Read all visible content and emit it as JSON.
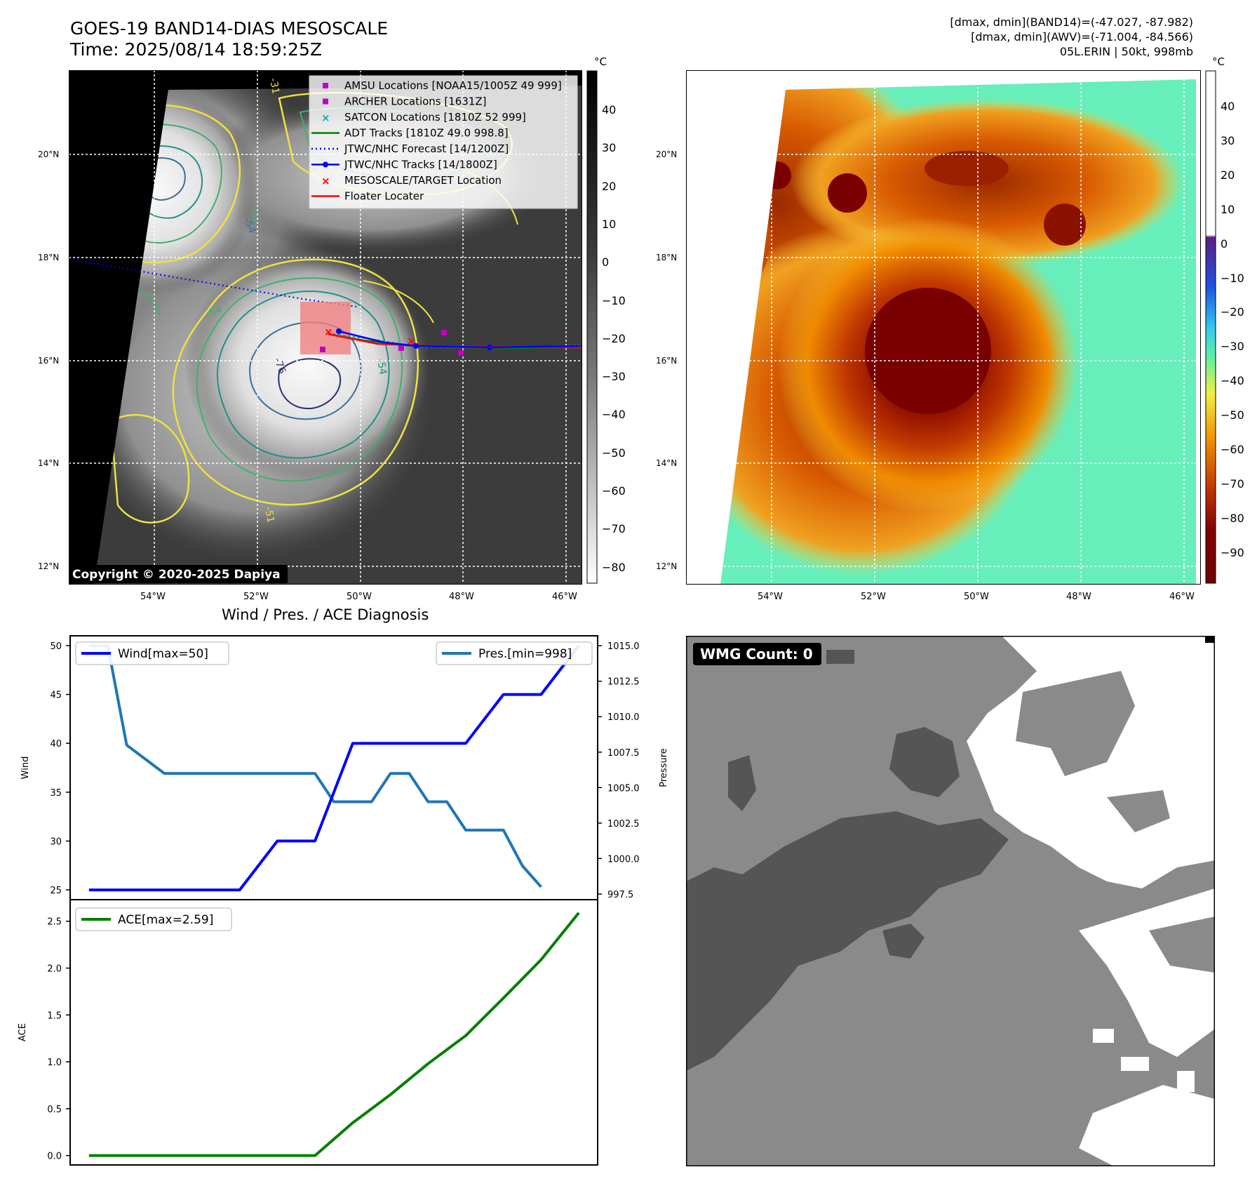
{
  "header": {
    "title_line1": "GOES-19 BAND14-DIAS MESOSCALE",
    "title_line2": "Time: 2025/08/14 18:59:25Z",
    "stats_line1": "[dmax, dmin](BAND14)=(-47.027, -87.982)",
    "stats_line2": "[dmax, dmin](AWV)=(-71.004, -84.566)",
    "stats_line3": "05L.ERIN | 50kt, 998mb"
  },
  "maps": {
    "lat_labels": [
      "20°N",
      "18°N",
      "16°N",
      "14°N",
      "12°N"
    ],
    "lon_labels": [
      "54°W",
      "52°W",
      "50°W",
      "48°W",
      "46°W"
    ],
    "copyright": "Copyright © 2020-2025 Dapiya",
    "contour_labels": [
      "-54",
      "-76",
      "-54",
      "-54",
      "-51",
      "-31",
      "-41"
    ]
  },
  "legend": {
    "items": [
      {
        "label": "AMSU Locations [NOAA15/1005Z 49 999]",
        "color": "#c000c0",
        "marker": "square"
      },
      {
        "label": "ARCHER Locations [1631Z]",
        "color": "#c000c0",
        "marker": "square"
      },
      {
        "label": "SATCON Locations [1810Z 52 999]",
        "color": "#00b0b0",
        "marker": "x"
      },
      {
        "label": "ADT Tracks [1810Z 49.0 998.8]",
        "color": "#008000",
        "marker": "line"
      },
      {
        "label": "JTWC/NHC Forecast [14/1200Z]",
        "color": "#0000ff",
        "marker": "dotted"
      },
      {
        "label": "JTWC/NHC Tracks [14/1800Z]",
        "color": "#0000ff",
        "marker": "line-dot"
      },
      {
        "label": "MESOSCALE/TARGET Location",
        "color": "#ff0000",
        "marker": "x"
      },
      {
        "label": "Floater Locater",
        "color": "#ff0000",
        "marker": "line"
      }
    ]
  },
  "colorbar_gray": {
    "unit": "°C",
    "ticks": [
      "40",
      "30",
      "20",
      "10",
      "0",
      "−10",
      "−20",
      "−30",
      "−40",
      "−50",
      "−60",
      "−70",
      "−80"
    ]
  },
  "colorbar_color": {
    "unit": "°C",
    "ticks": [
      "40",
      "30",
      "20",
      "10",
      "0",
      "−10",
      "−20",
      "−30",
      "−40",
      "−50",
      "−60",
      "−70",
      "−80",
      "−90"
    ]
  },
  "diag": {
    "title": "Wind / Pres. / ACE Diagnosis",
    "wind_ylabel": "Wind",
    "pres_ylabel": "Pressure",
    "ace_ylabel": "ACE",
    "wind_legend": "Wind[max=50]",
    "pres_legend": "Pres.[min=998]",
    "ace_legend": "ACE[max=2.59]",
    "wind_ticks": [
      "50",
      "45",
      "40",
      "35",
      "30",
      "25"
    ],
    "pres_ticks": [
      "1015.0",
      "1012.5",
      "1010.0",
      "1007.5",
      "1005.0",
      "1002.5",
      "1000.0",
      "997.5"
    ],
    "ace_ticks": [
      "2.5",
      "2.0",
      "1.5",
      "1.0",
      "0.5",
      "0.0"
    ]
  },
  "wmg": {
    "badge": "WMG Count: 0"
  },
  "chart_data": [
    {
      "type": "line",
      "title": "Wind / Pres. / ACE Diagnosis",
      "x": [
        0,
        1,
        2,
        3,
        4,
        5,
        6,
        7,
        8,
        9,
        10,
        11,
        12,
        13
      ],
      "ylim": [
        24,
        51
      ],
      "series": [
        {
          "name": "Wind[max=50]",
          "color": "#0000ff",
          "values": [
            25,
            25,
            25,
            25,
            25,
            30,
            30,
            40,
            40,
            40,
            40,
            45,
            45,
            50
          ]
        }
      ]
    },
    {
      "type": "line",
      "ylabel": "Pressure",
      "x": [
        0,
        0.5,
        1,
        2,
        3,
        4,
        5,
        6,
        6.5,
        7,
        7.5,
        8,
        8.5,
        9,
        9.5,
        10,
        11,
        11.5,
        12
      ],
      "ylim": [
        997.1,
        1015.7
      ],
      "series": [
        {
          "name": "Pres.[min=998]",
          "color": "#1f77b4",
          "values": [
            1015,
            1015,
            1008,
            1006,
            1006,
            1006,
            1006,
            1006,
            1004,
            1004,
            1004,
            1006,
            1006,
            1004,
            1004,
            1002,
            1002,
            999.5,
            998
          ]
        }
      ]
    },
    {
      "type": "line",
      "ylabel": "ACE",
      "x": [
        0,
        1,
        2,
        3,
        4,
        5,
        6,
        7,
        8,
        9,
        10,
        11,
        12,
        13
      ],
      "ylim": [
        -0.1,
        2.73
      ],
      "series": [
        {
          "name": "ACE[max=2.59]",
          "color": "#008000",
          "values": [
            0,
            0,
            0,
            0,
            0,
            0,
            0,
            0.35,
            0.65,
            0.98,
            1.28,
            1.68,
            2.09,
            2.59
          ]
        }
      ]
    }
  ]
}
